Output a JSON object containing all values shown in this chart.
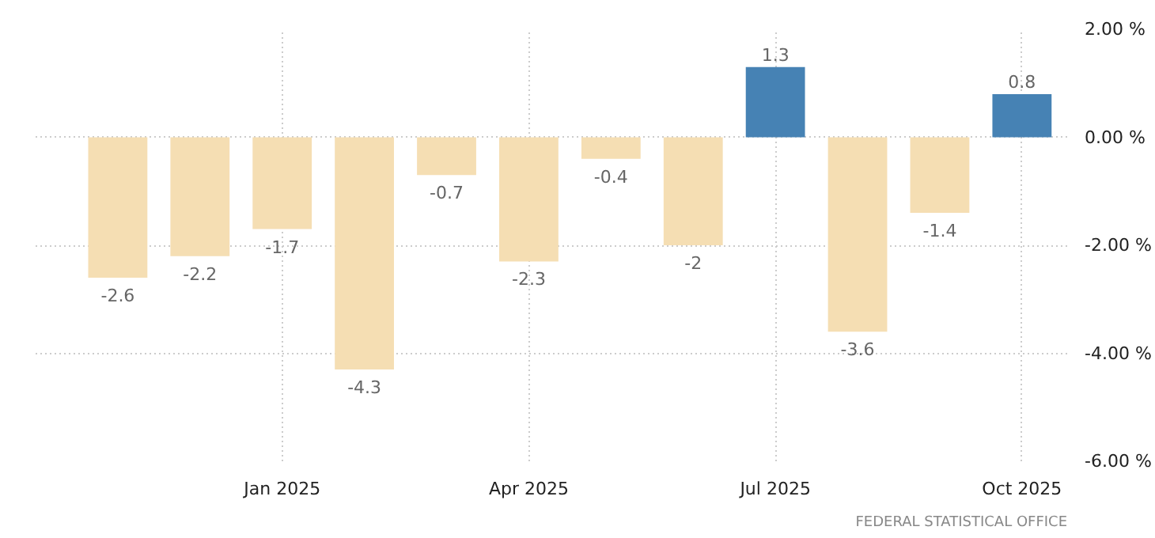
{
  "chart_data": {
    "type": "bar",
    "categories": [
      null,
      null,
      "Jan 2025",
      null,
      null,
      "Apr 2025",
      null,
      null,
      "Jul 2025",
      null,
      null,
      "Oct 2025"
    ],
    "values": [
      -2.6,
      -2.2,
      -1.7,
      -4.3,
      -0.7,
      -2.3,
      -0.4,
      -2,
      1.3,
      -3.6,
      -1.4,
      0.8
    ],
    "colors": [
      "#f5deb3",
      "#f5deb3",
      "#f5deb3",
      "#f5deb3",
      "#f5deb3",
      "#f5deb3",
      "#f5deb3",
      "#f5deb3",
      "#4682b4",
      "#f5deb3",
      "#f5deb3",
      "#4682b4"
    ],
    "ylim": [
      -6,
      2
    ],
    "yticks": [
      {
        "value": 2,
        "label": "2.00 %"
      },
      {
        "value": 0,
        "label": "0.00 %"
      },
      {
        "value": -2,
        "label": "-2.00 %"
      },
      {
        "value": -4,
        "label": "-4.00 %"
      },
      {
        "value": -6,
        "label": "-6.00 %"
      }
    ],
    "grid": true,
    "data_labels": true,
    "annotations": [
      "FEDERAL STATISTICAL OFFICE"
    ]
  }
}
